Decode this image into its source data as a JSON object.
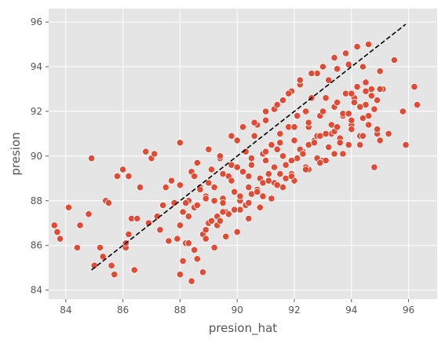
{
  "chart_data": {
    "type": "scatter",
    "title": "",
    "xlabel": "presion_hat",
    "ylabel": "presion",
    "xlim": [
      83.4,
      97.0
    ],
    "ylim": [
      83.6,
      96.6
    ],
    "x_ticks": [
      84,
      86,
      88,
      90,
      92,
      94,
      96
    ],
    "y_ticks": [
      84,
      86,
      88,
      90,
      92,
      94,
      96
    ],
    "grid": true,
    "style": "ggplot",
    "marker_color": "#e24a33",
    "marker_edge_color": "#ffffff",
    "background_color": "#e5e5e5",
    "reference_line": {
      "style": "dashed",
      "color": "#000000",
      "x": [
        84.9,
        95.9
      ],
      "y": [
        84.9,
        95.9
      ]
    },
    "series": [
      {
        "x": [
          83.6,
          83.7,
          83.8,
          84.1,
          84.4,
          84.5,
          84.8,
          84.9,
          85.0,
          85.2,
          85.3,
          85.4,
          85.5,
          85.6,
          85.7,
          85.8,
          86.0,
          86.1,
          86.1,
          86.2,
          86.2,
          86.3,
          86.4,
          86.5,
          86.6,
          86.8,
          86.9,
          87.0,
          87.1,
          87.2,
          87.3,
          87.4,
          87.5,
          87.6,
          87.7,
          87.8,
          87.9,
          88.0,
          88.0,
          88.1,
          88.2,
          88.3,
          88.4,
          88.5,
          88.6,
          88.7,
          88.8,
          88.9,
          89.0,
          89.1,
          89.2,
          89.3,
          89.4,
          89.5,
          89.6,
          89.7,
          89.8,
          89.9,
          90.0,
          90.1,
          90.2,
          90.3,
          90.4,
          90.5,
          90.6,
          90.7,
          90.8,
          90.9,
          91.0,
          91.1,
          91.2,
          91.3,
          91.4,
          91.5,
          91.6,
          91.7,
          91.8,
          91.9,
          92.0,
          92.1,
          92.2,
          92.3,
          92.4,
          92.5,
          92.6,
          92.7,
          92.8,
          92.9,
          93.0,
          93.1,
          93.2,
          93.3,
          93.4,
          93.5,
          93.6,
          93.7,
          93.8,
          93.9,
          94.0,
          94.1,
          94.2,
          94.3,
          94.4,
          94.5,
          94.6,
          94.7,
          94.8,
          94.9,
          95.0,
          95.1,
          95.3,
          95.5,
          95.8,
          95.9,
          96.2,
          96.3,
          88.0,
          88.3,
          88.6,
          88.9,
          89.2,
          89.5,
          89.8,
          90.1,
          90.4,
          90.7,
          91.0,
          91.3,
          91.6,
          91.9,
          92.2,
          92.5,
          92.8,
          93.1,
          93.4,
          93.7,
          94.0,
          94.3,
          94.6,
          94.9,
          88.1,
          88.5,
          88.9,
          89.3,
          89.7,
          90.1,
          90.5,
          90.9,
          91.3,
          91.7,
          92.1,
          92.5,
          92.9,
          93.3,
          93.7,
          94.1,
          94.5,
          88.4,
          88.8,
          89.2,
          89.6,
          90.0,
          90.4,
          90.8,
          91.2,
          91.6,
          92.0,
          92.4,
          92.8,
          93.2,
          93.6,
          94.0,
          94.4,
          94.8,
          88.2,
          88.7,
          89.1,
          89.5,
          89.9,
          90.3,
          90.7,
          91.1,
          91.5,
          91.9,
          92.3,
          92.7,
          93.1,
          93.5,
          93.9,
          94.3,
          94.7,
          95.0,
          88.6,
          89.0,
          89.4,
          89.8,
          90.2,
          90.6,
          91.0,
          91.4,
          91.8,
          92.2,
          92.6,
          93.0,
          93.4,
          93.8,
          94.2,
          94.6,
          88.3,
          88.9,
          89.4,
          89.9,
          90.4,
          90.9,
          91.4,
          91.9,
          92.4,
          92.9,
          93.4,
          93.9,
          94.4,
          94.9,
          88.0,
          88.5,
          89.0,
          89.5,
          90.0,
          90.5,
          91.0,
          91.5,
          92.0,
          92.5,
          93.0,
          93.5,
          94.0,
          94.5,
          95.0
        ],
        "y": [
          86.9,
          86.6,
          86.3,
          87.7,
          85.9,
          86.9,
          87.4,
          89.9,
          85.1,
          85.9,
          85.5,
          88.0,
          87.9,
          85.1,
          84.7,
          89.1,
          89.4,
          85.9,
          86.1,
          89.1,
          86.5,
          87.2,
          84.9,
          87.2,
          88.6,
          90.2,
          87.0,
          89.9,
          90.1,
          87.3,
          86.7,
          87.8,
          88.6,
          86.2,
          88.9,
          87.9,
          86.3,
          84.7,
          90.6,
          87.5,
          86.1,
          88.0,
          89.3,
          87.7,
          85.4,
          88.6,
          86.5,
          88.2,
          87.0,
          89.4,
          88.0,
          87.3,
          89.9,
          88.1,
          87.5,
          89.1,
          89.6,
          88.4,
          90.7,
          88.0,
          89.3,
          90.2,
          88.6,
          89.6,
          90.9,
          91.4,
          89.0,
          90.1,
          91.6,
          89.2,
          90.5,
          92.1,
          90.3,
          91.0,
          92.5,
          89.6,
          91.3,
          92.9,
          90.7,
          91.8,
          93.2,
          90.2,
          92.0,
          91.3,
          92.6,
          90.7,
          93.7,
          91.8,
          89.8,
          92.6,
          93.4,
          91.0,
          92.2,
          93.9,
          90.8,
          91.8,
          92.8,
          94.1,
          91.4,
          92.6,
          93.1,
          90.9,
          94.0,
          92.3,
          91.4,
          93.0,
          89.5,
          92.5,
          90.7,
          93.0,
          91.0,
          94.3,
          92.0,
          90.5,
          93.1,
          92.3,
          86.9,
          87.3,
          87.8,
          88.1,
          88.6,
          87.9,
          88.9,
          88.2,
          89.1,
          88.5,
          89.8,
          88.8,
          90.0,
          89.2,
          90.3,
          89.4,
          90.9,
          89.8,
          91.1,
          90.1,
          91.6,
          90.5,
          91.8,
          91.0,
          85.3,
          85.8,
          86.3,
          86.9,
          87.4,
          87.6,
          88.3,
          88.8,
          89.5,
          89.0,
          89.9,
          90.5,
          90.9,
          91.4,
          91.9,
          92.4,
          92.9,
          84.4,
          84.8,
          85.9,
          86.4,
          86.6,
          87.2,
          87.7,
          88.1,
          88.6,
          88.9,
          89.5,
          89.9,
          90.4,
          90.6,
          91.2,
          91.7,
          92.1,
          87.9,
          88.5,
          87.1,
          87.5,
          88.4,
          87.8,
          88.4,
          88.9,
          89.2,
          89.8,
          90.1,
          90.6,
          91.0,
          91.3,
          91.9,
          92.2,
          92.7,
          93.0,
          89.7,
          90.3,
          90.0,
          90.9,
          91.3,
          91.5,
          92.0,
          92.3,
          92.8,
          93.4,
          93.7,
          94.0,
          94.4,
          94.6,
          94.9,
          95.0,
          86.1,
          86.7,
          87.1,
          87.6,
          87.9,
          88.2,
          88.7,
          89.1,
          89.4,
          89.7,
          90.1,
          90.5,
          90.9,
          91.2,
          88.7,
          89.1,
          88.8,
          89.2,
          89.5,
          89.9,
          90.2,
          90.6,
          91.3,
          91.5,
          92.0,
          92.4,
          92.8,
          93.3,
          93.8
        ]
      }
    ]
  }
}
